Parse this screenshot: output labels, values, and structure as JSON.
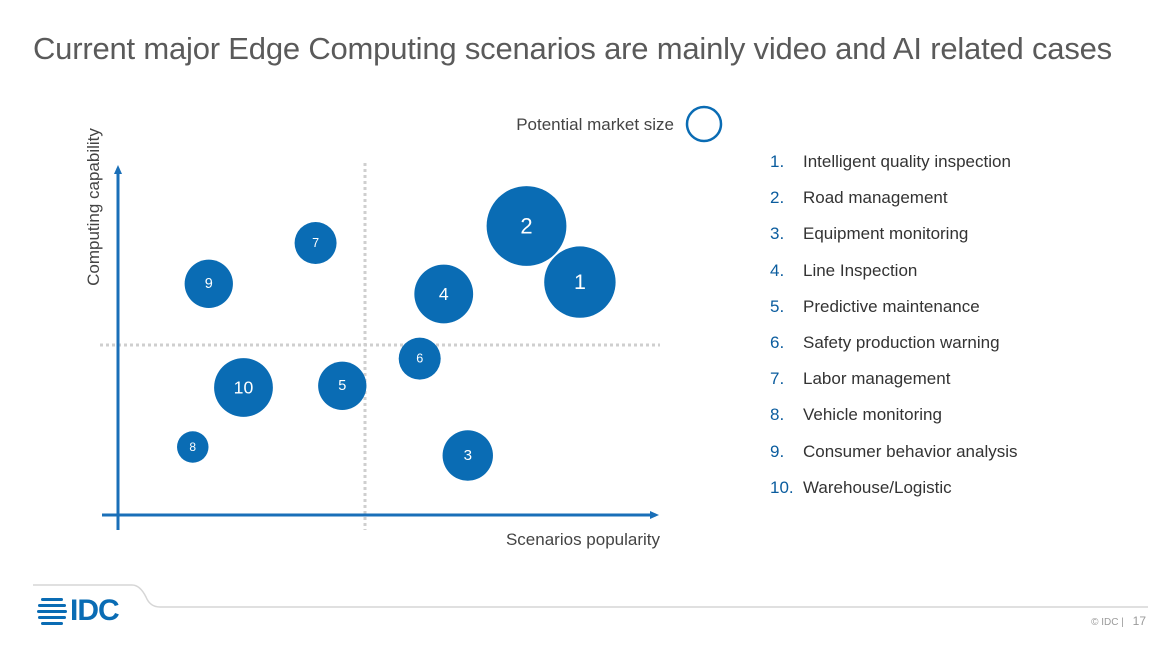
{
  "title": "Current major Edge Computing scenarios are mainly video and AI related cases",
  "chart_data": {
    "type": "bubble",
    "xlabel": "Scenarios popularity",
    "ylabel": "Computing capability",
    "size_legend_label": "Potential market size",
    "xlim": [
      0,
      10
    ],
    "ylim": [
      0,
      10
    ],
    "quadrant_split": {
      "x": 5,
      "y": 5
    },
    "grid": false,
    "legend_position": "right",
    "bubble_color": "#0a6cb4",
    "points": [
      {
        "id": "1",
        "name": "Intelligent quality inspection",
        "x": 8.65,
        "y": 6.85,
        "size": 3.4
      },
      {
        "id": "2",
        "name": "Road management",
        "x": 7.65,
        "y": 8.5,
        "size": 3.8
      },
      {
        "id": "3",
        "name": "Equipment monitoring",
        "x": 6.55,
        "y": 1.75,
        "size": 2.4
      },
      {
        "id": "4",
        "name": "Line Inspection",
        "x": 6.1,
        "y": 6.5,
        "size": 2.8
      },
      {
        "id": "5",
        "name": "Predictive maintenance",
        "x": 4.2,
        "y": 3.8,
        "size": 2.3
      },
      {
        "id": "6",
        "name": "Safety production warning",
        "x": 5.65,
        "y": 4.6,
        "size": 2.0
      },
      {
        "id": "7",
        "name": "Labor management",
        "x": 3.7,
        "y": 8.0,
        "size": 2.0
      },
      {
        "id": "8",
        "name": "Vehicle monitoring",
        "x": 1.4,
        "y": 2.0,
        "size": 1.5
      },
      {
        "id": "9",
        "name": "Consumer behavior analysis",
        "x": 1.7,
        "y": 6.8,
        "size": 2.3
      },
      {
        "id": "10",
        "name": "Warehouse/Logistic",
        "x": 2.35,
        "y": 3.75,
        "size": 2.8
      }
    ]
  },
  "legend": [
    {
      "num": "1.",
      "label": "Intelligent quality inspection"
    },
    {
      "num": "2.",
      "label": "Road management"
    },
    {
      "num": "3.",
      "label": "Equipment monitoring"
    },
    {
      "num": "4.",
      "label": "Line Inspection"
    },
    {
      "num": "5.",
      "label": "Predictive maintenance"
    },
    {
      "num": "6.",
      "label": "Safety production warning"
    },
    {
      "num": "7.",
      "label": "Labor management"
    },
    {
      "num": "8.",
      "label": "Vehicle monitoring"
    },
    {
      "num": "9.",
      "label": "Consumer behavior analysis"
    },
    {
      "num": "10.",
      "label": "Warehouse/Logistic"
    }
  ],
  "footer": {
    "logo_text": "IDC",
    "copyright": "© IDC |",
    "page_number": "17"
  },
  "colors": {
    "brand_blue": "#0a6cb4",
    "axis_blue": "#1a6fb8",
    "divider_gray": "#c9c9c9"
  }
}
